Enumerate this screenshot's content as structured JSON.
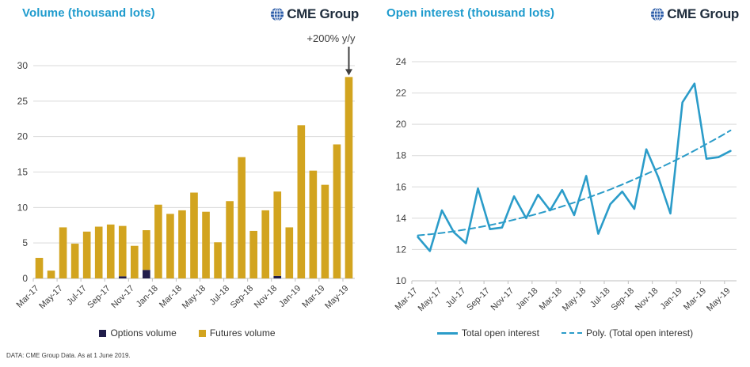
{
  "logo": {
    "brand": "CME Group",
    "icon": "globe-icon"
  },
  "footer": {
    "source": "DATA: CME Group Data. As at 1 June 2019."
  },
  "colors": {
    "title": "#1e9bcd",
    "futures": "#d2a41f",
    "options": "#201c4a",
    "line": "#2b9cc9",
    "grid": "#d9d9d9",
    "axis": "#bfbfbf",
    "logo_globe": "#2a5ba8",
    "logo_text": "#1e2c3c",
    "annotation": "#3f3f3f"
  },
  "chart_data": [
    {
      "type": "bar",
      "stacked": true,
      "title": "Volume (thousand lots)",
      "categories": [
        "Mar-17",
        "Apr-17",
        "May-17",
        "Jun-17",
        "Jul-17",
        "Aug-17",
        "Sep-17",
        "Oct-17",
        "Nov-17",
        "Dec-17",
        "Jan-18",
        "Feb-18",
        "Mar-18",
        "Apr-18",
        "May-18",
        "Jun-18",
        "Jul-18",
        "Aug-18",
        "Sep-18",
        "Oct-18",
        "Nov-18",
        "Dec-18",
        "Jan-19",
        "Feb-19",
        "Mar-19",
        "Apr-19",
        "May-19"
      ],
      "series": [
        {
          "name": "Options volume",
          "color": "#201c4a",
          "values": [
            0,
            0,
            0,
            0,
            0,
            0,
            0,
            0.3,
            0,
            1.2,
            0,
            0,
            0,
            0,
            0,
            0,
            0,
            0,
            0,
            0,
            0.35,
            0,
            0,
            0,
            0,
            0,
            0
          ]
        },
        {
          "name": "Futures volume",
          "color": "#d2a41f",
          "values": [
            2.9,
            1.1,
            7.2,
            4.9,
            6.6,
            7.3,
            7.6,
            7.1,
            4.6,
            5.6,
            10.4,
            9.1,
            9.6,
            12.1,
            9.4,
            5.1,
            10.9,
            17.1,
            6.7,
            9.6,
            11.9,
            7.2,
            21.6,
            15.2,
            13.2,
            18.9,
            28.4
          ]
        }
      ],
      "ylim": [
        0,
        30
      ],
      "yticks": [
        0,
        5,
        10,
        15,
        20,
        25,
        30
      ],
      "xlabel_every": 2,
      "grid": true,
      "legend_position": "bottom",
      "annotation": {
        "text": "+200% y/y",
        "target_category": "May-19"
      }
    },
    {
      "type": "line",
      "title": "Open interest (thousand lots)",
      "categories": [
        "Mar-17",
        "Apr-17",
        "May-17",
        "Jun-17",
        "Jul-17",
        "Aug-17",
        "Sep-17",
        "Oct-17",
        "Nov-17",
        "Dec-17",
        "Jan-18",
        "Feb-18",
        "Mar-18",
        "Apr-18",
        "May-18",
        "Jun-18",
        "Jul-18",
        "Aug-18",
        "Sep-18",
        "Oct-18",
        "Nov-18",
        "Dec-18",
        "Jan-19",
        "Feb-19",
        "Mar-19",
        "Apr-19",
        "May-19"
      ],
      "series": [
        {
          "name": "Total open interest",
          "style": "solid",
          "values": [
            12.8,
            11.9,
            14.5,
            13.1,
            12.4,
            15.9,
            13.3,
            13.4,
            15.4,
            14.0,
            15.5,
            14.5,
            15.8,
            14.2,
            16.7,
            13.0,
            14.9,
            15.7,
            14.6,
            18.4,
            16.6,
            14.3,
            21.4,
            22.6,
            17.8,
            17.9,
            18.3
          ]
        },
        {
          "name": "Poly. (Total open interest)",
          "style": "dashed",
          "values": [
            12.9,
            12.97,
            13.06,
            13.16,
            13.28,
            13.41,
            13.56,
            13.72,
            13.9,
            14.09,
            14.29,
            14.51,
            14.75,
            15.0,
            15.27,
            15.55,
            15.84,
            16.15,
            16.48,
            16.82,
            17.17,
            17.54,
            17.92,
            18.32,
            18.74,
            19.16,
            19.61
          ]
        }
      ],
      "ylim": [
        10,
        24
      ],
      "yticks": [
        10,
        12,
        14,
        16,
        18,
        20,
        22,
        24
      ],
      "xlabel_every": 2,
      "grid": true,
      "legend_position": "bottom"
    }
  ]
}
